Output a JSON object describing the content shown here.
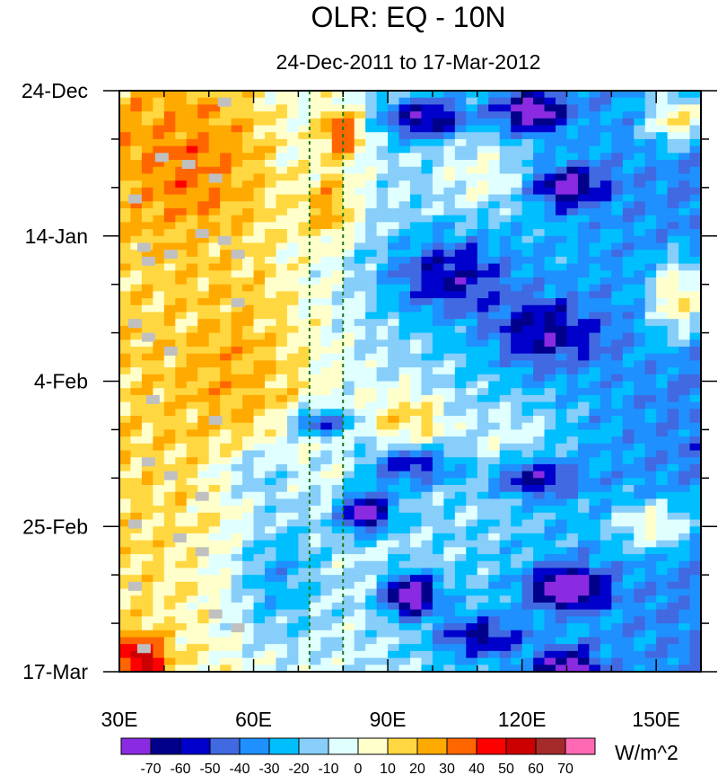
{
  "chart_data": {
    "type": "heatmap",
    "title": "OLR: EQ - 10N",
    "subtitle": "24-Dec-2011 to 17-Mar-2012",
    "x_axis": {
      "range": [
        30,
        160
      ],
      "tick_values": [
        30,
        60,
        90,
        120,
        150
      ],
      "tick_labels": [
        "30E",
        "60E",
        "90E",
        "120E",
        "150E"
      ],
      "minor_step": 10
    },
    "y_axis": {
      "range_days": [
        0,
        84
      ],
      "tick_days": [
        0,
        21,
        42,
        63,
        84
      ],
      "tick_labels": [
        "24-Dec",
        "14-Jan",
        "4-Feb",
        "25-Feb",
        "17-Mar"
      ],
      "minor_step_days": 7
    },
    "reference_lines_longitude": [
      72.5,
      80
    ],
    "colorbar": {
      "levels": [
        -70,
        -60,
        -50,
        -40,
        -30,
        -20,
        -10,
        0,
        10,
        20,
        30,
        40,
        50,
        60,
        70
      ],
      "labels": [
        "-70",
        "-60",
        "-50",
        "-40",
        "-30",
        "-20",
        "-10",
        "0",
        "10",
        "20",
        "30",
        "40",
        "50",
        "60",
        "70"
      ],
      "colors": [
        "#8a2be2",
        "#00008b",
        "#0000cd",
        "#4169e1",
        "#1e90ff",
        "#00bfff",
        "#87cefa",
        "#e0ffff",
        "#ffffcc",
        "#ffd740",
        "#ffaa00",
        "#ff6600",
        "#ff0000",
        "#cc0000",
        "#a52a2a",
        "#ff69b4"
      ],
      "units": "W/m^2"
    },
    "missing_color": "#c0c0c0",
    "grid_size": {
      "lon_cells": 52,
      "time_cells": 84
    },
    "anomaly_features": [
      {
        "lon": 48,
        "day": 10,
        "amp": 25,
        "slon": 18,
        "sday": 12
      },
      {
        "lon": 80,
        "day": 6,
        "amp": 45,
        "slon": 5,
        "sday": 4
      },
      {
        "lon": 77,
        "day": 17,
        "amp": 30,
        "slon": 6,
        "sday": 5
      },
      {
        "lon": 58,
        "day": 42,
        "amp": 20,
        "slon": 18,
        "sday": 18
      },
      {
        "lon": 35,
        "day": 82,
        "amp": 50,
        "slon": 5,
        "sday": 3
      },
      {
        "lon": 155,
        "day": 4,
        "amp": 50,
        "slon": 7,
        "sday": 4
      },
      {
        "lon": 155,
        "day": 30,
        "amp": 50,
        "slon": 7,
        "sday": 6
      },
      {
        "lon": 150,
        "day": 63,
        "amp": 40,
        "slon": 10,
        "sday": 4
      },
      {
        "lon": 95,
        "day": 48,
        "amp": 30,
        "slon": 9,
        "sday": 5
      },
      {
        "lon": 118,
        "day": 53,
        "amp": 20,
        "slon": 12,
        "sday": 8
      },
      {
        "lon": 112,
        "day": 12,
        "amp": 20,
        "slon": 10,
        "sday": 6
      },
      {
        "lon": 98,
        "day": 4,
        "amp": -55,
        "slon": 10,
        "sday": 3
      },
      {
        "lon": 122,
        "day": 3,
        "amp": -60,
        "slon": 8,
        "sday": 3
      },
      {
        "lon": 130,
        "day": 14,
        "amp": -50,
        "slon": 8,
        "sday": 3
      },
      {
        "lon": 103,
        "day": 27,
        "amp": -45,
        "slon": 14,
        "sday": 6
      },
      {
        "lon": 125,
        "day": 35,
        "amp": -40,
        "slon": 12,
        "sday": 5
      },
      {
        "lon": 75,
        "day": 48,
        "amp": -55,
        "slon": 7,
        "sday": 2
      },
      {
        "lon": 95,
        "day": 54,
        "amp": -50,
        "slon": 10,
        "sday": 3
      },
      {
        "lon": 122,
        "day": 56,
        "amp": -55,
        "slon": 9,
        "sday": 3
      },
      {
        "lon": 85,
        "day": 61,
        "amp": -70,
        "slon": 6,
        "sday": 3
      },
      {
        "lon": 95,
        "day": 73,
        "amp": -75,
        "slon": 6,
        "sday": 3
      },
      {
        "lon": 130,
        "day": 72,
        "amp": -70,
        "slon": 8,
        "sday": 3
      },
      {
        "lon": 110,
        "day": 79,
        "amp": -45,
        "slon": 10,
        "sday": 3
      },
      {
        "lon": 130,
        "day": 84,
        "amp": -60,
        "slon": 7,
        "sday": 3
      },
      {
        "lon": 65,
        "day": 70,
        "amp": -30,
        "slon": 10,
        "sday": 10
      },
      {
        "lon": 60,
        "day": 55,
        "amp": -25,
        "slon": 10,
        "sday": 5
      }
    ],
    "missing_cells": [
      {
        "lon": 52,
        "day": 1
      },
      {
        "lon": 38,
        "day": 9
      },
      {
        "lon": 44,
        "day": 10
      },
      {
        "lon": 50,
        "day": 12
      },
      {
        "lon": 32,
        "day": 15
      },
      {
        "lon": 47,
        "day": 20
      },
      {
        "lon": 52,
        "day": 21
      },
      {
        "lon": 34,
        "day": 22
      },
      {
        "lon": 40,
        "day": 23
      },
      {
        "lon": 55,
        "day": 23
      },
      {
        "lon": 35,
        "day": 24
      },
      {
        "lon": 55,
        "day": 30
      },
      {
        "lon": 32,
        "day": 33
      },
      {
        "lon": 35,
        "day": 35
      },
      {
        "lon": 40,
        "day": 37
      },
      {
        "lon": 36,
        "day": 44
      },
      {
        "lon": 50,
        "day": 47
      },
      {
        "lon": 35,
        "day": 53
      },
      {
        "lon": 40,
        "day": 55
      },
      {
        "lon": 47,
        "day": 58
      },
      {
        "lon": 32,
        "day": 62
      },
      {
        "lon": 42,
        "day": 64
      },
      {
        "lon": 47,
        "day": 66
      },
      {
        "lon": 32,
        "day": 71
      },
      {
        "lon": 50,
        "day": 75
      },
      {
        "lon": 55,
        "day": 77
      },
      {
        "lon": 34,
        "day": 80
      }
    ]
  }
}
